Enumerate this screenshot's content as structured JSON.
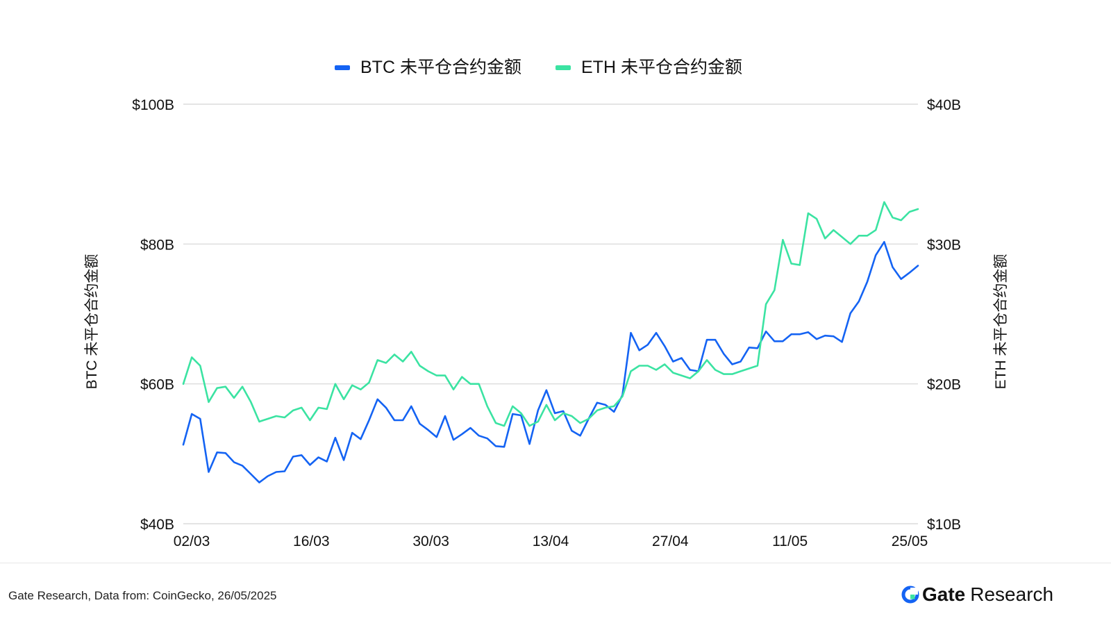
{
  "legend": [
    {
      "label": "BTC 未平仓合约金额",
      "color": "#1463f3"
    },
    {
      "label": "ETH 未平仓合约金额",
      "color": "#3be3a2"
    }
  ],
  "footer": {
    "source": "Gate Research, Data from: CoinGecko, 26/05/2025",
    "brand_bold": "Gate",
    "brand_rest": "Research",
    "brand_icon": "gate-logo-icon"
  },
  "chart_data": {
    "type": "line",
    "grid": true,
    "legend_position": "top-center",
    "x_ticks": [
      "02/03",
      "16/03",
      "30/03",
      "13/04",
      "27/04",
      "11/05",
      "25/05"
    ],
    "y_left": {
      "label": "BTC 未平仓合约金额",
      "ticks": [
        "$40B",
        "$60B",
        "$80B",
        "$100B"
      ],
      "range": [
        40,
        100
      ]
    },
    "y_right": {
      "label": "ETH 未平仓合约金额",
      "ticks": [
        "$10B",
        "$20B",
        "$30B",
        "$40B"
      ],
      "range": [
        10,
        40
      ]
    },
    "series": [
      {
        "name": "BTC 未平仓合约金额",
        "axis": "left",
        "color": "#1463f3",
        "values": [
          51.3,
          55.7,
          55.0,
          47.4,
          50.2,
          50.1,
          48.8,
          48.3,
          47.1,
          45.9,
          46.8,
          47.4,
          47.5,
          49.6,
          49.8,
          48.4,
          49.5,
          48.9,
          52.3,
          49.1,
          53.0,
          52.1,
          54.8,
          57.8,
          56.6,
          54.8,
          54.8,
          56.8,
          54.3,
          53.4,
          52.4,
          55.4,
          52.0,
          52.8,
          53.7,
          52.6,
          52.2,
          51.1,
          51.0,
          55.7,
          55.5,
          51.4,
          56.2,
          59.1,
          55.8,
          56.1,
          53.3,
          52.6,
          55.0,
          57.3,
          57.0,
          56.0,
          58.4,
          67.3,
          64.8,
          65.6,
          67.3,
          65.4,
          63.2,
          63.7,
          62.0,
          61.8,
          66.3,
          66.3,
          64.3,
          62.8,
          63.2,
          65.2,
          65.1,
          67.5,
          66.1,
          66.1,
          67.1,
          67.1,
          67.4,
          66.4,
          66.9,
          66.8,
          66.0,
          70.1,
          71.8,
          74.6,
          78.4,
          80.3,
          76.7,
          75.0,
          75.9,
          76.9
        ]
      },
      {
        "name": "ETH 未平仓合约金额",
        "axis": "right",
        "color": "#3be3a2",
        "values": [
          20.0,
          21.9,
          21.3,
          18.7,
          19.7,
          19.8,
          19.0,
          19.8,
          18.7,
          17.3,
          17.5,
          17.7,
          17.6,
          18.1,
          18.3,
          17.4,
          18.3,
          18.2,
          20.0,
          18.9,
          19.9,
          19.6,
          20.1,
          21.7,
          21.5,
          22.1,
          21.6,
          22.3,
          21.3,
          20.9,
          20.6,
          20.6,
          19.6,
          20.5,
          20.0,
          20.0,
          18.4,
          17.2,
          17.0,
          18.4,
          17.9,
          17.0,
          17.3,
          18.5,
          17.4,
          17.9,
          17.7,
          17.2,
          17.5,
          18.1,
          18.3,
          18.4,
          19.1,
          20.9,
          21.3,
          21.3,
          21.0,
          21.4,
          20.8,
          20.6,
          20.4,
          20.9,
          21.7,
          21.0,
          20.7,
          20.7,
          20.9,
          21.1,
          21.3,
          25.7,
          26.7,
          30.3,
          28.6,
          28.5,
          32.2,
          31.8,
          30.4,
          31.0,
          30.5,
          30.0,
          30.6,
          30.6,
          31.0,
          33.0,
          31.9,
          31.7,
          32.3,
          32.5
        ]
      }
    ]
  }
}
